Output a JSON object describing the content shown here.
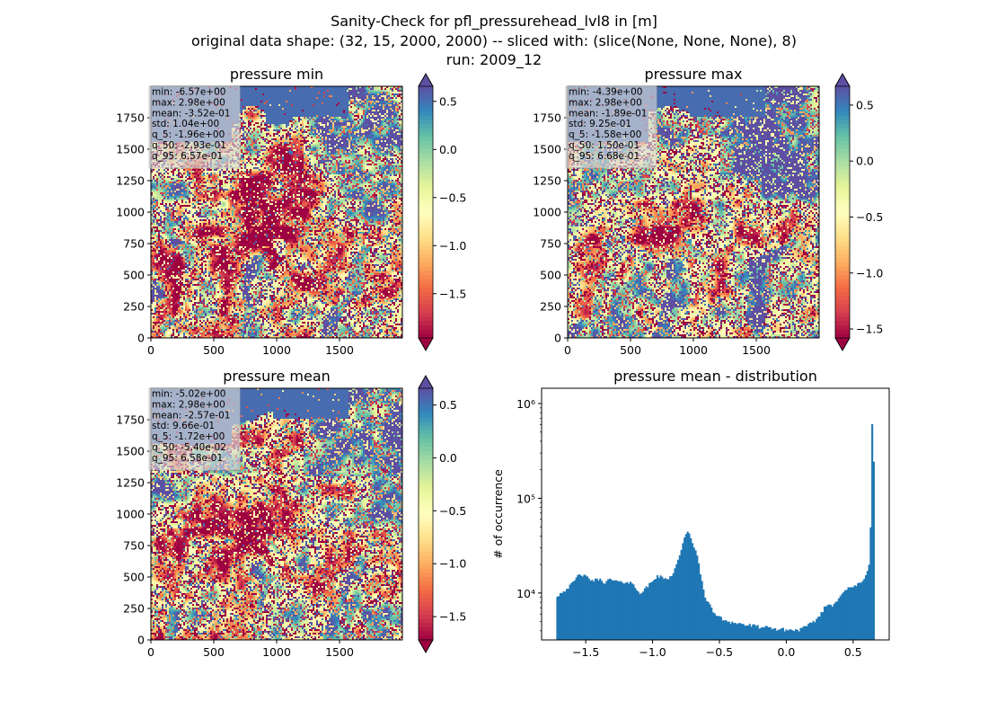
{
  "figure": {
    "title_lines": [
      "Sanity-Check for pfl_pressurehead_lvl8 in [m]",
      "original data shape: (32, 15, 2000, 2000) -- sliced with: (slice(None, None, None), 8)",
      "run: 2009_12"
    ]
  },
  "colors": {
    "spectral": [
      "#9e0142",
      "#d53e4f",
      "#f46d43",
      "#fdae61",
      "#fee08b",
      "#ffffbf",
      "#e6f598",
      "#abdda4",
      "#66c2a5",
      "#3288bd",
      "#5e4fa2"
    ],
    "hist_bar": "#1f77b4"
  },
  "chart_data": [
    {
      "type": "heatmap",
      "title": "pressure min",
      "x_ticks": [
        "0",
        "500",
        "1000",
        "1500"
      ],
      "y_ticks": [
        "0",
        "250",
        "500",
        "750",
        "1000",
        "1250",
        "1500",
        "1750"
      ],
      "xlim": [
        0,
        2000
      ],
      "ylim": [
        0,
        2000
      ],
      "colorbar": {
        "vmin": -1.96,
        "vmax": 0.657,
        "ticks": [
          "0.5",
          "0.0",
          "−0.5",
          "−1.0",
          "−1.5"
        ],
        "tick_values": [
          0.5,
          0.0,
          -0.5,
          -1.0,
          -1.5
        ],
        "extend": "both"
      },
      "stats": [
        "min: -6.57e+00",
        "max: 2.98e+00",
        "mean: -3.52e-01",
        "std: 1.04e+00",
        "q_5: -1.96e+00",
        "q_50: -2.93e-01",
        "q_95: 6.57e-01"
      ]
    },
    {
      "type": "heatmap",
      "title": "pressure max",
      "x_ticks": [
        "0",
        "500",
        "1000",
        "1500"
      ],
      "y_ticks": [
        "0",
        "250",
        "500",
        "750",
        "1000",
        "1250",
        "1500",
        "1750"
      ],
      "xlim": [
        0,
        2000
      ],
      "ylim": [
        0,
        2000
      ],
      "colorbar": {
        "vmin": -1.58,
        "vmax": 0.668,
        "ticks": [
          "0.5",
          "0.0",
          "−0.5",
          "−1.0",
          "−1.5"
        ],
        "tick_values": [
          0.5,
          0.0,
          -0.5,
          -1.0,
          -1.5
        ],
        "extend": "both"
      },
      "stats": [
        "min: -4.39e+00",
        "max: 2.98e+00",
        "mean: -1.89e-01",
        "std: 9.25e-01",
        "q_5: -1.58e+00",
        "q_50: 1.50e-01",
        "q_95: 6.68e-01"
      ]
    },
    {
      "type": "heatmap",
      "title": "pressure mean",
      "x_ticks": [
        "0",
        "500",
        "1000",
        "1500"
      ],
      "y_ticks": [
        "0",
        "250",
        "500",
        "750",
        "1000",
        "1250",
        "1500",
        "1750"
      ],
      "xlim": [
        0,
        2000
      ],
      "ylim": [
        0,
        2000
      ],
      "colorbar": {
        "vmin": -1.72,
        "vmax": 0.658,
        "ticks": [
          "0.5",
          "0.0",
          "−0.5",
          "−1.0",
          "−1.5"
        ],
        "tick_values": [
          0.5,
          0.0,
          -0.5,
          -1.0,
          -1.5
        ],
        "extend": "both"
      },
      "stats": [
        "min: -5.02e+00",
        "max: 2.98e+00",
        "mean: -2.57e-01",
        "std: 9.66e-01",
        "q_5: -1.72e+00",
        "q_50: -5.40e-02",
        "q_95: 6.58e-01"
      ]
    },
    {
      "type": "bar",
      "subtype": "histogram",
      "title": "pressure mean - distribution",
      "ylabel": "# of occurrence",
      "xlabel": "",
      "yscale": "log",
      "x_ticks": [
        "−1.5",
        "−1.0",
        "−0.5",
        "0.0",
        "0.5"
      ],
      "x_tick_values": [
        -1.5,
        -1.0,
        -0.5,
        0.0,
        0.5
      ],
      "y_ticks": [
        "10⁴",
        "10⁵",
        "10⁶"
      ],
      "y_tick_values": [
        10000,
        100000,
        1000000
      ],
      "xlim": [
        -1.83,
        0.77
      ],
      "ylim": [
        3200,
        1450000
      ],
      "bin_range": [
        -1.72,
        0.66
      ],
      "profile": [
        [
          -1.72,
          9200
        ],
        [
          -1.68,
          10200
        ],
        [
          -1.64,
          11200
        ],
        [
          -1.6,
          12500
        ],
        [
          -1.57,
          14500
        ],
        [
          -1.54,
          16000
        ],
        [
          -1.51,
          15000
        ],
        [
          -1.47,
          14000
        ],
        [
          -1.44,
          13500
        ],
        [
          -1.4,
          14000
        ],
        [
          -1.36,
          13000
        ],
        [
          -1.32,
          13800
        ],
        [
          -1.28,
          13500
        ],
        [
          -1.24,
          12800
        ],
        [
          -1.2,
          13200
        ],
        [
          -1.16,
          12800
        ],
        [
          -1.12,
          11000
        ],
        [
          -1.09,
          10000
        ],
        [
          -1.06,
          10800
        ],
        [
          -1.02,
          12500
        ],
        [
          -0.98,
          14500
        ],
        [
          -0.95,
          15000
        ],
        [
          -0.91,
          14000
        ],
        [
          -0.88,
          14500
        ],
        [
          -0.85,
          16000
        ],
        [
          -0.82,
          20000
        ],
        [
          -0.79,
          28000
        ],
        [
          -0.76,
          38000
        ],
        [
          -0.74,
          44000
        ],
        [
          -0.72,
          40000
        ],
        [
          -0.7,
          34000
        ],
        [
          -0.67,
          26000
        ],
        [
          -0.64,
          15000
        ],
        [
          -0.61,
          9500
        ],
        [
          -0.58,
          7600
        ],
        [
          -0.55,
          6500
        ],
        [
          -0.52,
          5800
        ],
        [
          -0.48,
          5300
        ],
        [
          -0.44,
          5100
        ],
        [
          -0.4,
          4900
        ],
        [
          -0.35,
          4750
        ],
        [
          -0.3,
          4600
        ],
        [
          -0.25,
          4500
        ],
        [
          -0.2,
          4400
        ],
        [
          -0.15,
          4300
        ],
        [
          -0.1,
          4200
        ],
        [
          -0.05,
          4150
        ],
        [
          0.0,
          4100
        ],
        [
          0.05,
          4050
        ],
        [
          0.1,
          4100
        ],
        [
          0.13,
          4300
        ],
        [
          0.16,
          4500
        ],
        [
          0.19,
          4800
        ],
        [
          0.22,
          5200
        ],
        [
          0.25,
          5800
        ],
        [
          0.28,
          6800
        ],
        [
          0.31,
          7600
        ],
        [
          0.34,
          7400
        ],
        [
          0.37,
          8000
        ],
        [
          0.4,
          9500
        ],
        [
          0.43,
          10500
        ],
        [
          0.46,
          11000
        ],
        [
          0.49,
          11500
        ],
        [
          0.52,
          12000
        ],
        [
          0.55,
          12500
        ],
        [
          0.58,
          13500
        ],
        [
          0.6,
          16000
        ],
        [
          0.62,
          21000
        ],
        [
          0.63,
          48000
        ],
        [
          0.645,
          1150000
        ],
        [
          0.655,
          210000
        ],
        [
          0.66,
          210000
        ]
      ]
    }
  ]
}
